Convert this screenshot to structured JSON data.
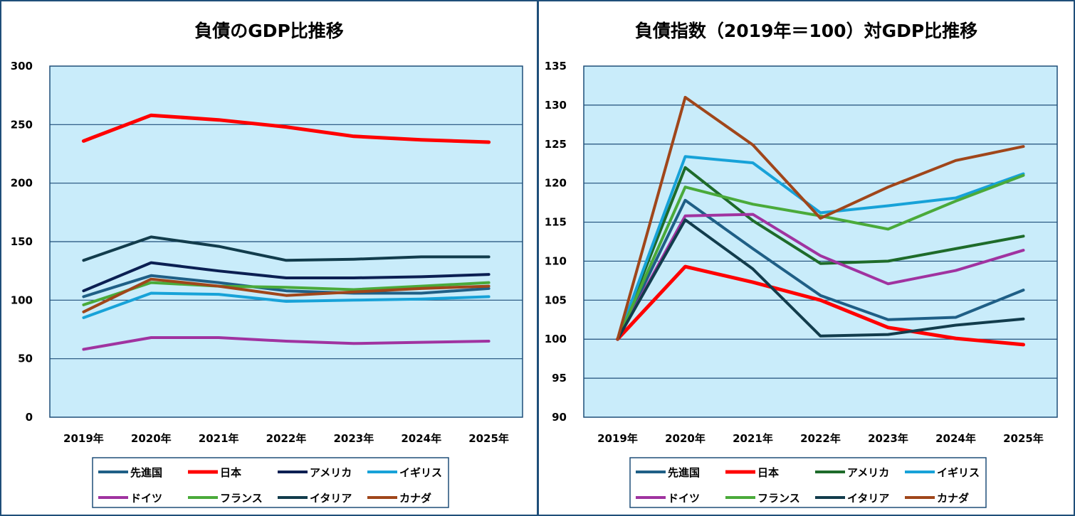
{
  "chart_data": [
    {
      "type": "line",
      "title": "負債のGDP比推移",
      "categories": [
        "2019年",
        "2020年",
        "2021年",
        "2022年",
        "2023年",
        "2024年",
        "2025年"
      ],
      "ylim": [
        0,
        300
      ],
      "yticks": [
        0,
        50,
        100,
        150,
        200,
        250,
        300
      ],
      "grid": true,
      "legend_position": "bottom",
      "series": [
        {
          "name": "先進国",
          "color": "#1f5f86",
          "values": [
            103,
            121,
            115,
            108,
            106,
            106,
            110
          ]
        },
        {
          "name": "日本",
          "color": "#ff0000",
          "values": [
            236,
            258,
            254,
            248,
            240,
            237,
            235
          ]
        },
        {
          "name": "アメリカ",
          "color": "#0b1f52",
          "values": [
            108,
            132,
            125,
            119,
            119,
            120,
            122
          ]
        },
        {
          "name": "イギリス",
          "color": "#17a2d8",
          "values": [
            85,
            106,
            105,
            99,
            100,
            101,
            103
          ]
        },
        {
          "name": "ドイツ",
          "color": "#a033a0",
          "values": [
            58,
            68,
            68,
            65,
            63,
            64,
            65
          ]
        },
        {
          "name": "フランス",
          "color": "#4aaa3a",
          "values": [
            96,
            115,
            112,
            111,
            109,
            112,
            115
          ]
        },
        {
          "name": "イタリア",
          "color": "#123c4c",
          "values": [
            134,
            154,
            146,
            134,
            135,
            137,
            137
          ]
        },
        {
          "name": "カナダ",
          "color": "#a0461a",
          "values": [
            90,
            118,
            112,
            104,
            107,
            110,
            112
          ]
        }
      ]
    },
    {
      "type": "line",
      "title": "負債指数（2019年＝100）対GDP比推移",
      "categories": [
        "2019年",
        "2020年",
        "2021年",
        "2022年",
        "2023年",
        "2024年",
        "2025年"
      ],
      "ylim": [
        90,
        135
      ],
      "yticks": [
        90,
        95,
        100,
        105,
        110,
        115,
        120,
        125,
        130,
        135
      ],
      "grid": true,
      "legend_position": "bottom",
      "series": [
        {
          "name": "先進国",
          "color": "#1f5f86",
          "values": [
            100,
            117.8,
            111.6,
            105.6,
            102.5,
            102.8,
            106.3
          ]
        },
        {
          "name": "日本",
          "color": "#ff0000",
          "values": [
            100,
            109.3,
            107.3,
            105.0,
            101.5,
            100.1,
            99.3
          ]
        },
        {
          "name": "アメリカ",
          "color": "#1e6b2a",
          "values": [
            100,
            122.0,
            115.2,
            109.7,
            110.0,
            111.6,
            113.2
          ]
        },
        {
          "name": "イギリス",
          "color": "#17a2d8",
          "values": [
            100,
            123.4,
            122.6,
            116.2,
            117.1,
            118.1,
            121.2
          ]
        },
        {
          "name": "ドイツ",
          "color": "#a033a0",
          "values": [
            100,
            115.8,
            116.0,
            110.7,
            107.1,
            108.8,
            111.4
          ]
        },
        {
          "name": "フランス",
          "color": "#4aaa3a",
          "values": [
            100,
            119.5,
            117.3,
            115.8,
            114.1,
            117.7,
            121.0
          ]
        },
        {
          "name": "イタリア",
          "color": "#123c4c",
          "values": [
            100,
            115.3,
            109.0,
            100.4,
            100.6,
            101.8,
            102.6
          ]
        },
        {
          "name": "カナダ",
          "color": "#a0461a",
          "values": [
            100,
            131.0,
            124.9,
            115.5,
            119.5,
            122.9,
            124.7
          ]
        }
      ]
    }
  ]
}
